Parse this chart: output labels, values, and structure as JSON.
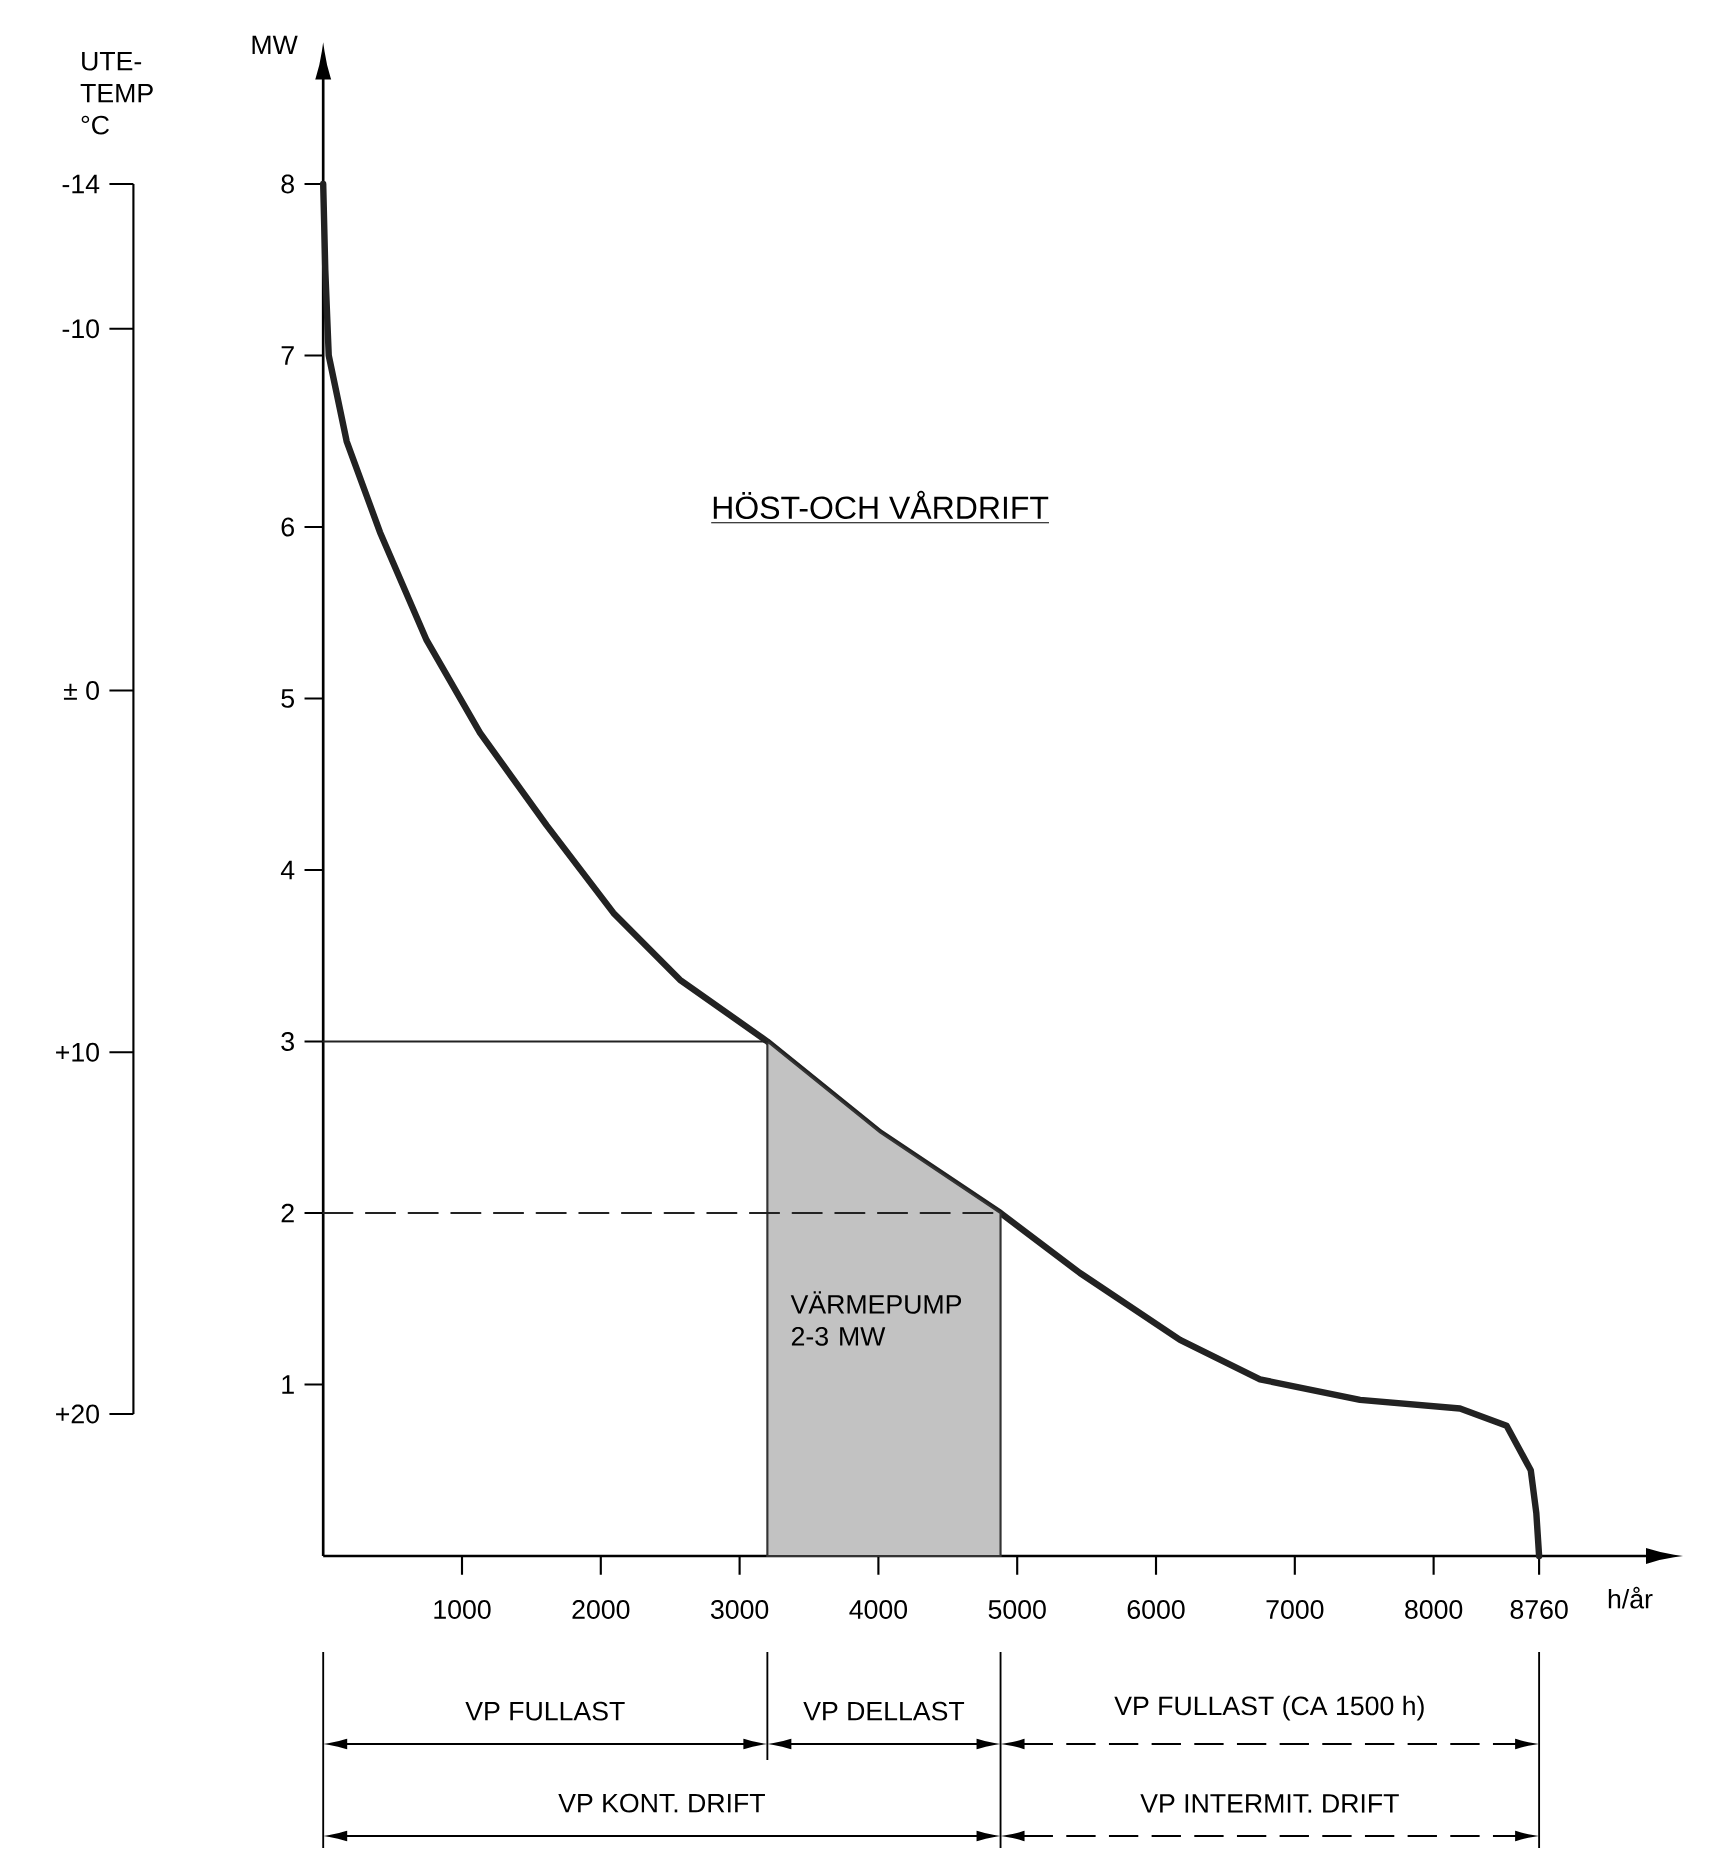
{
  "chart_data": {
    "type": "line",
    "title": "HÖST-OCH VÅRDRIFT",
    "xlabel": "h/år",
    "ylabel": "MW",
    "y2label": "UTE-TEMP °C",
    "xlim": [
      0,
      9530
    ],
    "ylim": [
      0,
      8.61
    ],
    "xticks": [
      1000,
      2000,
      3000,
      4000,
      5000,
      6000,
      7000,
      8000,
      8760
    ],
    "yticks": [
      1,
      2,
      3,
      4,
      5,
      6,
      7,
      8
    ],
    "y2lim": [
      20,
      -14
    ],
    "y2ticks": [
      -14,
      -10,
      {
        "value": 0,
        "label": "± 0"
      },
      {
        "value": 10,
        "label": "+10"
      },
      {
        "value": 20,
        "label": "+20"
      }
    ],
    "series": [
      {
        "color": "#222222",
        "x": [
          0,
          15,
          40,
          169,
          409,
          745,
          1130,
          1610,
          2091,
          2570,
          3200,
          4012,
          4880,
          5452,
          6173,
          6749,
          7470,
          8190,
          8526,
          8700,
          8740,
          8760
        ],
        "values": [
          8.0,
          7.5,
          7.0,
          6.5,
          5.97,
          5.34,
          4.8,
          4.26,
          3.75,
          3.36,
          3.0,
          2.47,
          2.0,
          1.65,
          1.26,
          1.03,
          0.91,
          0.86,
          0.76,
          0.5,
          0.25,
          0
        ]
      },
      {
        "type": "area",
        "color": "#333333",
        "x": [
          3200,
          4012,
          4880
        ],
        "values": [
          3.0,
          2.47,
          2.0
        ]
      },
      {
        "color": "#222222",
        "line_style": "solid",
        "x": [
          0,
          3200
        ],
        "values": [
          3,
          3
        ]
      },
      {
        "color": "#222222",
        "line_style": "dashed",
        "x": [
          0,
          4880
        ],
        "values": [
          2,
          2
        ]
      }
    ],
    "annotations": [
      "VÄRMEPUMP 2-3 MW",
      "VP FULLAST",
      "VP DELLAST",
      "VP FULLAST (CA 1500 h)",
      "VP KONT. DRIFT",
      "VP INTERMIT. DRIFT"
    ]
  }
}
